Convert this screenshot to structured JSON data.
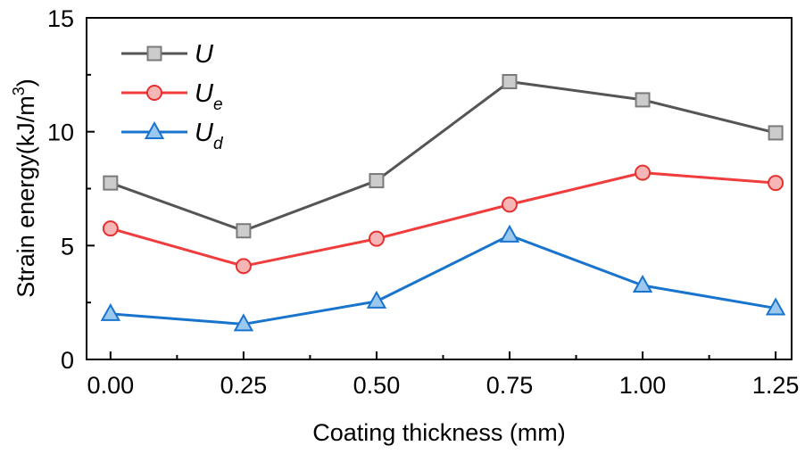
{
  "chart_data": {
    "type": "line",
    "xlabel": "Coating thickness (mm)",
    "ylabel": "Strain energy(kJ/m3)",
    "ylabel_parts": {
      "main": "Strain energy(kJ/m",
      "sup": "3",
      "close": ")"
    },
    "x": [
      0.0,
      0.25,
      0.5,
      0.75,
      1.0,
      1.25
    ],
    "x_tick_labels": [
      "0.00",
      "0.25",
      "0.50",
      "0.75",
      "1.00",
      "1.25"
    ],
    "xlim": [
      -0.045,
      1.28
    ],
    "y_ticks": [
      0,
      5,
      10,
      15
    ],
    "y_tick_labels": [
      "0",
      "5",
      "10",
      "15"
    ],
    "ylim": [
      0,
      15
    ],
    "grid": false,
    "legend_position": "top-left",
    "series": [
      {
        "name": "U",
        "base": "U",
        "subscript": "",
        "marker": "square",
        "color": "#555555",
        "marker_fill": "#cccccc",
        "marker_stroke": "#7a7a7a",
        "values": [
          7.75,
          5.65,
          7.85,
          12.2,
          11.4,
          9.95
        ]
      },
      {
        "name": "Ue",
        "base": "U",
        "subscript": "e",
        "marker": "circle",
        "color": "#f03c3c",
        "marker_fill": "#f7b6b6",
        "marker_stroke": "#e63030",
        "values": [
          5.75,
          4.1,
          5.3,
          6.8,
          8.2,
          7.75
        ]
      },
      {
        "name": "Ud",
        "base": "U",
        "subscript": "d",
        "marker": "triangle",
        "color": "#1874cd",
        "marker_fill": "#9cc8ef",
        "marker_stroke": "#1874cd",
        "values": [
          2.0,
          1.55,
          2.55,
          5.45,
          3.25,
          2.25
        ]
      }
    ]
  }
}
